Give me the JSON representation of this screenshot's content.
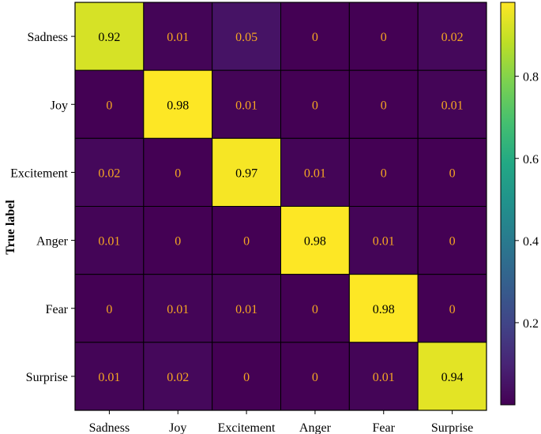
{
  "chart_data": {
    "type": "heatmap",
    "title": "",
    "xlabel": "",
    "ylabel": "True label",
    "x_categories": [
      "Sadness",
      "Joy",
      "Excitement",
      "Anger",
      "Fear",
      "Surprise"
    ],
    "y_categories": [
      "Sadness",
      "Joy",
      "Excitement",
      "Anger",
      "Fear",
      "Surprise"
    ],
    "values": [
      [
        0.92,
        0.01,
        0.05,
        0,
        0,
        0.02
      ],
      [
        0,
        0.98,
        0.01,
        0,
        0,
        0.01
      ],
      [
        0.02,
        0,
        0.97,
        0.01,
        0,
        0
      ],
      [
        0.01,
        0,
        0,
        0.98,
        0.01,
        0
      ],
      [
        0,
        0.01,
        0.01,
        0,
        0.98,
        0
      ],
      [
        0.01,
        0.02,
        0,
        0,
        0.01,
        0.94
      ]
    ],
    "colormap": "viridis",
    "value_range": [
      0,
      0.98
    ],
    "colorbar_ticks": [
      0.2,
      0.4,
      0.6,
      0.8
    ],
    "colors": {
      "low_cell": "#440154",
      "high_cell": "#fde725",
      "low_value_text": "#f5a623",
      "high_value_text": "#000000",
      "grid_line": "#000000"
    }
  }
}
